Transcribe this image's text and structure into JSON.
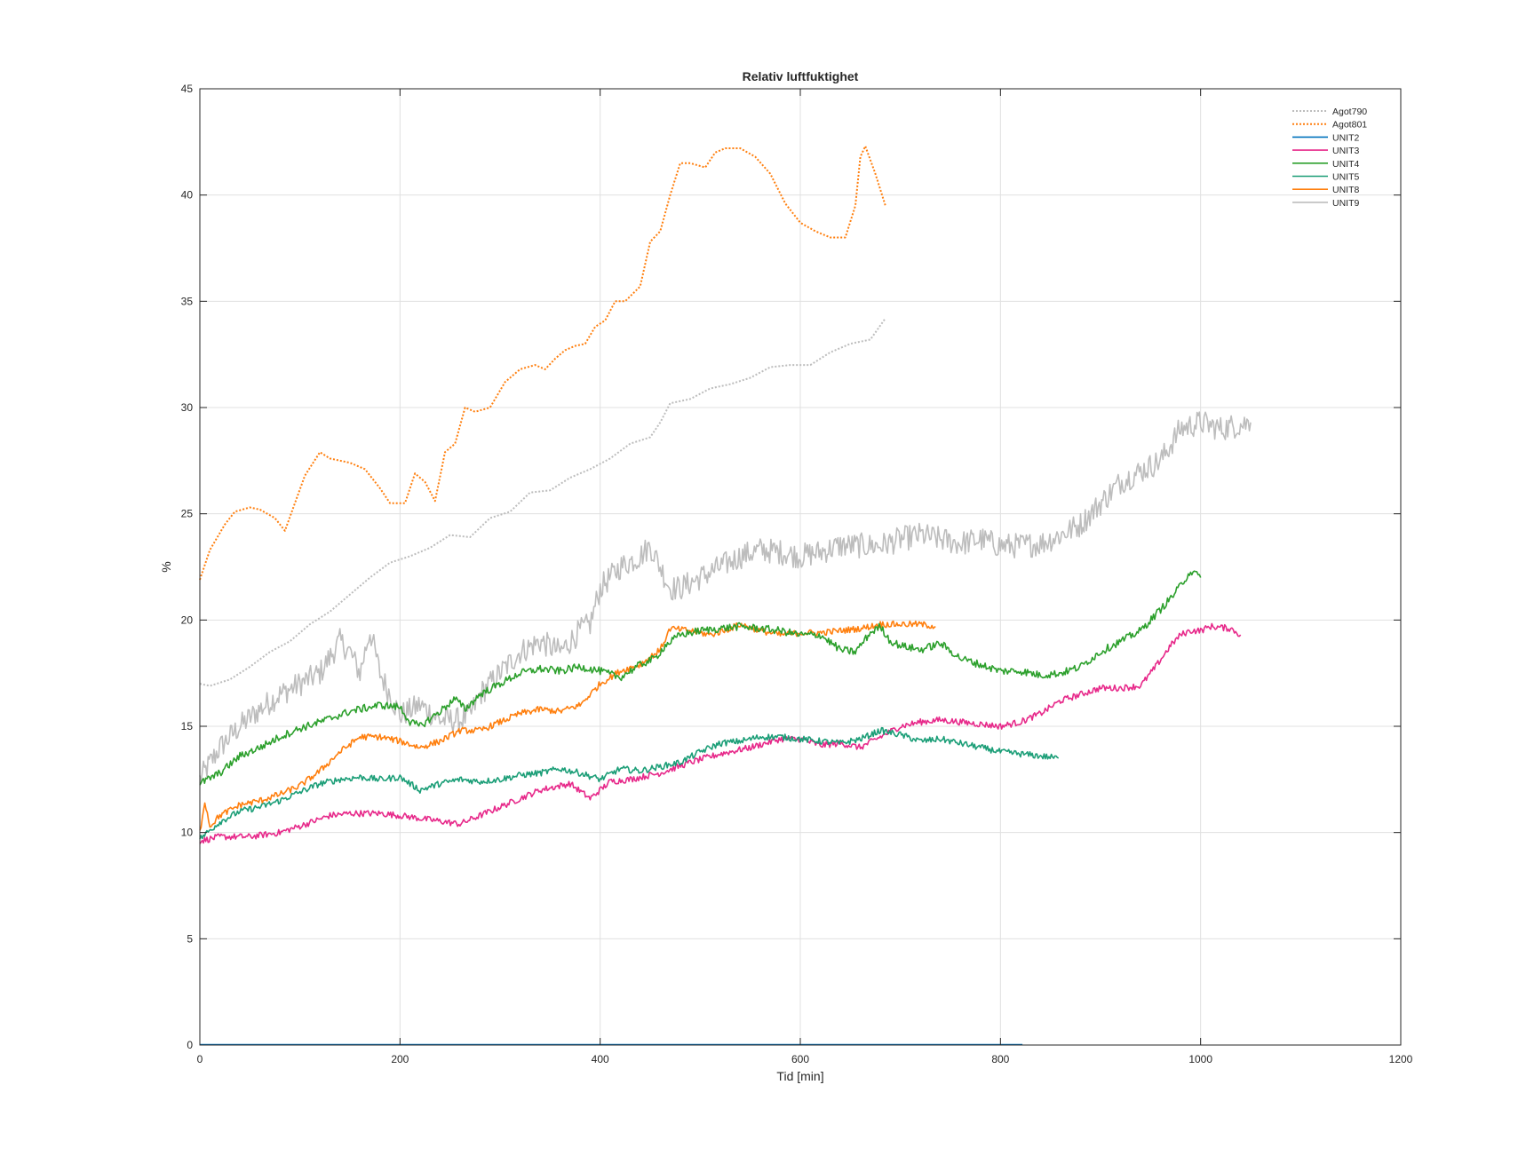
{
  "chart_data": {
    "type": "line",
    "title": "Relativ luftfuktighet",
    "xlabel": "Tid [min]",
    "ylabel": "%",
    "xlim": [
      0,
      1200
    ],
    "ylim": [
      0,
      45
    ],
    "xticks": [
      0,
      200,
      400,
      600,
      800,
      1000,
      1200
    ],
    "yticks": [
      0,
      5,
      10,
      15,
      20,
      25,
      30,
      35,
      40,
      45
    ],
    "grid": true,
    "legend_position": "top-right",
    "series": [
      {
        "name": "Agot790",
        "color": "#bdbdbd",
        "style": "dotted",
        "noise": 0,
        "x": [
          0,
          10,
          30,
          50,
          70,
          90,
          110,
          130,
          150,
          170,
          190,
          210,
          230,
          250,
          270,
          290,
          310,
          330,
          350,
          370,
          390,
          410,
          430,
          450,
          460,
          470,
          490,
          510,
          530,
          550,
          570,
          590,
          610,
          630,
          650,
          670,
          685
        ],
        "y": [
          17.0,
          16.9,
          17.2,
          17.8,
          18.5,
          19.0,
          19.8,
          20.4,
          21.2,
          22.0,
          22.7,
          23.0,
          23.4,
          24.0,
          23.9,
          24.8,
          25.1,
          26.0,
          26.1,
          26.7,
          27.1,
          27.6,
          28.3,
          28.6,
          29.3,
          30.2,
          30.4,
          30.9,
          31.1,
          31.4,
          31.9,
          32.0,
          32.0,
          32.6,
          33.0,
          33.2,
          34.2
        ]
      },
      {
        "name": "Agot801",
        "color": "#ff7f0e",
        "style": "dotted",
        "noise": 0,
        "x": [
          0,
          10,
          25,
          35,
          50,
          60,
          75,
          85,
          95,
          105,
          120,
          130,
          150,
          165,
          180,
          190,
          205,
          215,
          225,
          235,
          245,
          255,
          265,
          275,
          290,
          305,
          320,
          335,
          345,
          355,
          365,
          375,
          385,
          395,
          405,
          415,
          425,
          440,
          450,
          460,
          470,
          480,
          490,
          505,
          515,
          525,
          540,
          555,
          570,
          585,
          600,
          615,
          630,
          645,
          655,
          660,
          665,
          675,
          685
        ],
        "y": [
          21.9,
          23.3,
          24.5,
          25.1,
          25.3,
          25.2,
          24.8,
          24.2,
          25.5,
          26.8,
          27.9,
          27.6,
          27.4,
          27.1,
          26.2,
          25.5,
          25.5,
          26.9,
          26.5,
          25.6,
          27.9,
          28.3,
          30.0,
          29.8,
          30.0,
          31.2,
          31.8,
          32.0,
          31.8,
          32.3,
          32.7,
          32.9,
          33.0,
          33.8,
          34.1,
          35.0,
          35.0,
          35.7,
          37.8,
          38.3,
          40.0,
          41.5,
          41.5,
          41.3,
          42.0,
          42.2,
          42.2,
          41.8,
          41.0,
          39.6,
          38.7,
          38.3,
          38.0,
          38.0,
          39.5,
          41.8,
          42.3,
          41.0,
          39.5
        ]
      },
      {
        "name": "UNIT2",
        "color": "#0072bd",
        "style": "solid",
        "noise": 0,
        "x": [
          0,
          822
        ],
        "y": [
          0.02,
          0.02
        ]
      },
      {
        "name": "UNIT3",
        "color": "#e7298a",
        "style": "solid",
        "noise": 0.15,
        "x": [
          0,
          20,
          50,
          80,
          100,
          130,
          150,
          180,
          200,
          230,
          260,
          290,
          310,
          340,
          370,
          390,
          410,
          430,
          460,
          490,
          520,
          550,
          580,
          600,
          620,
          640,
          660,
          680,
          700,
          720,
          740,
          760,
          780,
          800,
          820,
          840,
          860,
          880,
          900,
          920,
          940,
          955,
          970,
          980,
          990,
          1000,
          1010,
          1030,
          1040
        ],
        "y": [
          9.6,
          9.8,
          9.8,
          10.0,
          10.3,
          10.8,
          10.9,
          10.9,
          10.8,
          10.6,
          10.4,
          11.0,
          11.4,
          12.0,
          12.3,
          11.6,
          12.4,
          12.5,
          12.8,
          13.3,
          13.7,
          14.0,
          14.4,
          14.4,
          14.1,
          14.2,
          14.0,
          14.5,
          15.0,
          15.2,
          15.3,
          15.2,
          15.1,
          15.0,
          15.2,
          15.6,
          16.2,
          16.5,
          16.8,
          16.8,
          16.9,
          17.8,
          18.8,
          19.3,
          19.5,
          19.5,
          19.7,
          19.6,
          19.3
        ]
      },
      {
        "name": "UNIT4",
        "color": "#2ca02c",
        "style": "solid",
        "noise": 0.18,
        "x": [
          0,
          20,
          40,
          60,
          80,
          100,
          120,
          150,
          180,
          200,
          210,
          220,
          240,
          255,
          265,
          280,
          300,
          320,
          340,
          360,
          380,
          400,
          420,
          440,
          455,
          465,
          480,
          500,
          520,
          540,
          560,
          580,
          600,
          620,
          640,
          655,
          670,
          680,
          690,
          700,
          720,
          740,
          760,
          780,
          800,
          820,
          840,
          860,
          880,
          900,
          920,
          940,
          960,
          975,
          990,
          1000
        ],
        "y": [
          12.3,
          12.8,
          13.6,
          14.0,
          14.5,
          14.9,
          15.2,
          15.7,
          16.0,
          15.9,
          15.2,
          15.0,
          15.7,
          16.3,
          15.8,
          16.5,
          17.0,
          17.5,
          17.7,
          17.6,
          17.8,
          17.6,
          17.3,
          17.9,
          18.2,
          18.8,
          19.3,
          19.5,
          19.6,
          19.7,
          19.6,
          19.5,
          19.3,
          19.3,
          18.6,
          18.5,
          19.4,
          19.7,
          19.0,
          18.8,
          18.6,
          18.9,
          18.2,
          17.9,
          17.6,
          17.6,
          17.4,
          17.5,
          17.8,
          18.5,
          19.0,
          19.5,
          20.5,
          21.3,
          22.3,
          22.0
        ]
      },
      {
        "name": "UNIT5",
        "color": "#1b9e77",
        "style": "solid",
        "noise": 0.15,
        "x": [
          0,
          20,
          40,
          60,
          80,
          100,
          120,
          140,
          160,
          180,
          200,
          210,
          220,
          240,
          260,
          280,
          300,
          320,
          340,
          360,
          380,
          400,
          420,
          440,
          460,
          480,
          500,
          520,
          540,
          560,
          580,
          600,
          620,
          640,
          660,
          680,
          700,
          720,
          740,
          760,
          780,
          800,
          820,
          840,
          858
        ],
        "y": [
          9.7,
          10.5,
          11.0,
          11.2,
          11.5,
          11.9,
          12.3,
          12.5,
          12.6,
          12.5,
          12.6,
          12.3,
          12.0,
          12.3,
          12.5,
          12.4,
          12.5,
          12.7,
          12.8,
          13.0,
          12.8,
          12.5,
          13.0,
          12.9,
          13.1,
          13.3,
          13.8,
          14.2,
          14.3,
          14.5,
          14.5,
          14.4,
          14.3,
          14.2,
          14.4,
          14.8,
          14.6,
          14.3,
          14.4,
          14.2,
          14.0,
          13.8,
          13.7,
          13.6,
          13.5
        ]
      },
      {
        "name": "UNIT8",
        "color": "#ff7f0e",
        "style": "solid",
        "noise": 0.15,
        "x": [
          0,
          5,
          10,
          20,
          40,
          60,
          80,
          100,
          120,
          140,
          160,
          180,
          200,
          220,
          240,
          260,
          280,
          300,
          320,
          340,
          360,
          380,
          400,
          420,
          440,
          460,
          470,
          490,
          510,
          530,
          540,
          560,
          580,
          600,
          620,
          640,
          660,
          680,
          700,
          720,
          735
        ],
        "y": [
          10.0,
          11.5,
          10.3,
          10.8,
          11.3,
          11.5,
          11.8,
          12.2,
          12.9,
          13.8,
          14.5,
          14.5,
          14.3,
          14.0,
          14.3,
          14.8,
          14.8,
          15.2,
          15.6,
          15.8,
          15.7,
          16.0,
          17.0,
          17.6,
          17.9,
          18.6,
          19.6,
          19.5,
          19.3,
          19.6,
          19.8,
          19.5,
          19.3,
          19.4,
          19.4,
          19.5,
          19.6,
          19.8,
          19.8,
          19.8,
          19.7
        ]
      },
      {
        "name": "UNIT9",
        "color": "#bdbdbd",
        "style": "solid",
        "noise": 0.6,
        "x": [
          0,
          20,
          40,
          60,
          80,
          100,
          120,
          140,
          150,
          160,
          170,
          180,
          190,
          200,
          220,
          240,
          260,
          270,
          280,
          300,
          320,
          340,
          360,
          380,
          390,
          400,
          420,
          440,
          450,
          460,
          470,
          480,
          500,
          520,
          540,
          560,
          580,
          600,
          620,
          640,
          660,
          680,
          700,
          720,
          740,
          760,
          780,
          800,
          820,
          840,
          860,
          880,
          900,
          920,
          940,
          960,
          980,
          1000,
          1020,
          1040,
          1050
        ],
        "y": [
          12.5,
          14.0,
          15.0,
          15.8,
          16.5,
          17.0,
          17.5,
          19.0,
          18.5,
          17.5,
          19.5,
          17.5,
          16.5,
          15.5,
          16.0,
          15.3,
          15.3,
          15.5,
          16.5,
          17.5,
          18.5,
          19.0,
          18.5,
          19.5,
          19.8,
          21.5,
          22.5,
          23.0,
          23.5,
          22.5,
          21.5,
          21.5,
          22.0,
          22.5,
          23.0,
          23.3,
          23.2,
          23.0,
          23.2,
          23.5,
          23.5,
          23.5,
          23.8,
          24.0,
          23.8,
          23.6,
          23.8,
          23.5,
          23.5,
          23.6,
          24.0,
          24.5,
          25.5,
          26.5,
          27.0,
          27.5,
          29.0,
          29.3,
          29.0,
          29.2,
          29.3
        ]
      }
    ]
  }
}
